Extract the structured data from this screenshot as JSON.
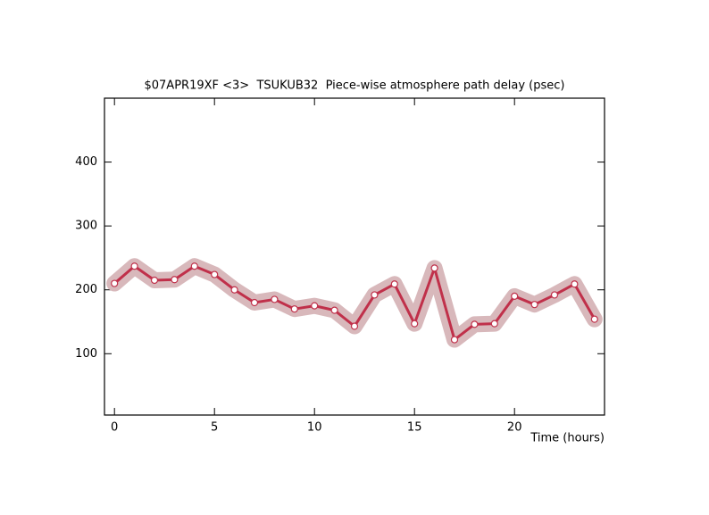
{
  "chart_data": {
    "type": "line",
    "title": "$07APR19XF <3>  TSUKUB32  Piece-wise atmosphere path delay (psec)",
    "xlabel": "Time (hours)",
    "x": [
      0,
      1,
      2,
      3,
      4,
      5,
      6,
      7,
      8,
      9,
      10,
      11,
      12,
      13,
      14,
      15,
      16,
      17,
      18,
      19,
      20,
      21,
      22,
      23,
      24
    ],
    "series": [
      {
        "name": "TSUKUB32",
        "color": "#c0304a",
        "band_color": "#d8b8bb",
        "values": [
          210,
          237,
          215,
          216,
          237,
          224,
          200,
          180,
          185,
          170,
          175,
          168,
          143,
          192,
          209,
          147,
          234,
          122,
          146,
          147,
          190,
          177,
          192,
          209,
          154
        ]
      }
    ],
    "xlim": [
      -0.5,
      24.5
    ],
    "ylim": [
      4,
      500
    ],
    "xticks": [
      0,
      5,
      10,
      15,
      20
    ],
    "yticks": [
      100,
      200,
      300,
      400
    ]
  }
}
